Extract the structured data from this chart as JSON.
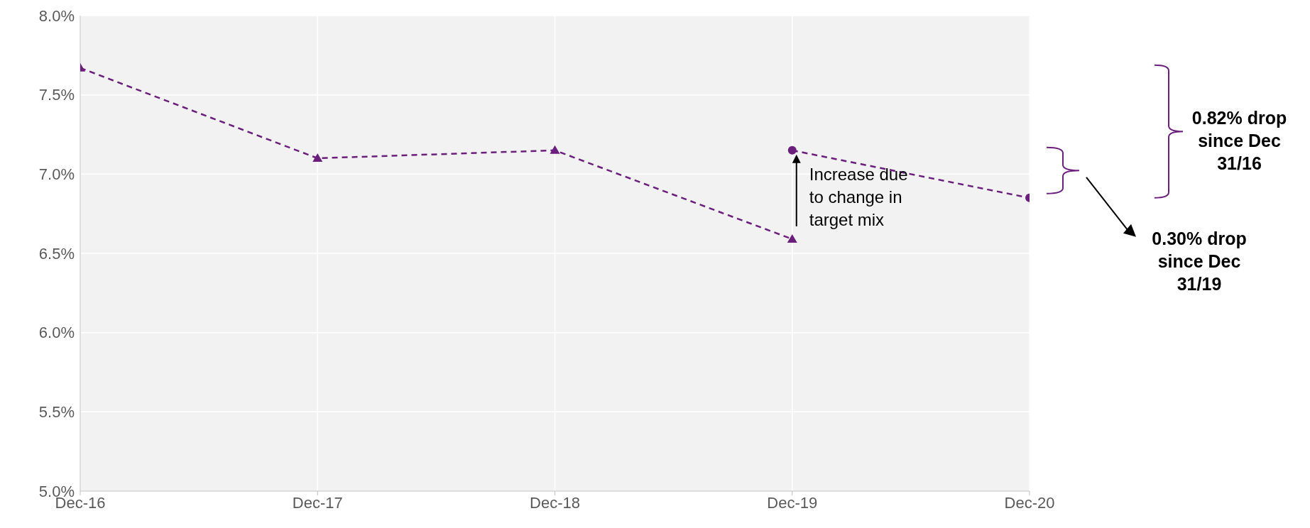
{
  "chart_data": {
    "type": "line",
    "categories": [
      "Dec-16",
      "Dec-17",
      "Dec-18",
      "Dec-19",
      "Dec-20"
    ],
    "series": [
      {
        "color": "#6b1f7c",
        "values": [
          7.67,
          7.1,
          7.15,
          6.59,
          null
        ],
        "marker": "triangle",
        "line_style": "dashed"
      },
      {
        "color": "#6b1f7c",
        "values": [
          null,
          null,
          null,
          7.15,
          6.85
        ],
        "marker": "circle",
        "line_style": "dashed"
      }
    ],
    "ylim": [
      5.0,
      8.0
    ],
    "yticks": [
      {
        "value": 5.0,
        "label": "5.0%"
      },
      {
        "value": 5.5,
        "label": "5.5%"
      },
      {
        "value": 6.0,
        "label": "6.0%"
      },
      {
        "value": 6.5,
        "label": "6.5%"
      },
      {
        "value": 7.0,
        "label": "7.0%"
      },
      {
        "value": 7.5,
        "label": "7.5%"
      },
      {
        "value": 8.0,
        "label": "8.0%"
      }
    ],
    "grid": true,
    "annotations": [
      "Increase due to change in target mix",
      "0.82% drop since Dec 31/16",
      "0.30% drop since Dec 31/19"
    ]
  }
}
